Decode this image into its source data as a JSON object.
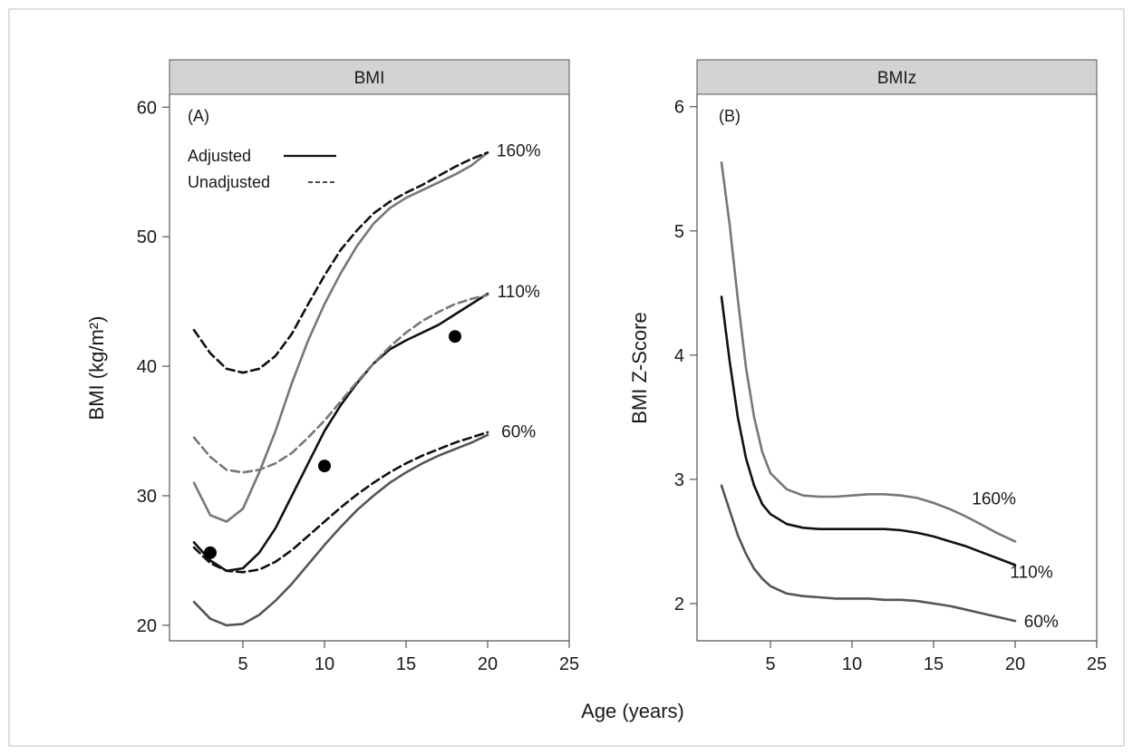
{
  "figure": {
    "xlabel": "Age (years)",
    "colors": {
      "dark": "#111111",
      "gray": "#777777",
      "mid": "#555555",
      "strip_fill": "#d3d3d3",
      "frame": "#bdbdbd"
    }
  },
  "chart_data": [
    {
      "type": "line",
      "strip_title": "BMI",
      "panel_tag": "(A)",
      "xlabel": "Age (years)",
      "ylabel": "BMI (kg/m²)",
      "xlim": [
        0.5,
        25
      ],
      "ylim": [
        18.8,
        61
      ],
      "x_ticks": [
        5,
        10,
        15,
        20,
        25
      ],
      "y_ticks": [
        20,
        30,
        40,
        50,
        60
      ],
      "legend": [
        {
          "label": "Adjusted",
          "style": "solid"
        },
        {
          "label": "Unadjusted",
          "style": "dashed"
        }
      ],
      "series": [
        {
          "name": "160%",
          "label": "160%",
          "adjustment": "Adjusted",
          "style": "solid",
          "color": "#777777",
          "label_at": [
            21.9,
            56.7
          ],
          "x": [
            2,
            3,
            4,
            5,
            6,
            7,
            8,
            9,
            10,
            11,
            12,
            13,
            14,
            15,
            16,
            17,
            18,
            19,
            20
          ],
          "y": [
            31.0,
            28.5,
            28.0,
            29.0,
            31.8,
            35.0,
            38.7,
            42.0,
            44.8,
            47.2,
            49.3,
            51.0,
            52.2,
            53.0,
            53.6,
            54.2,
            54.8,
            55.5,
            56.5
          ]
        },
        {
          "name": "160% unadjusted",
          "adjustment": "Unadjusted",
          "style": "dashed",
          "color": "#111111",
          "x": [
            2,
            3,
            4,
            5,
            6,
            7,
            8,
            9,
            10,
            11,
            12,
            13,
            14,
            15,
            16,
            17,
            18,
            19,
            20
          ],
          "y": [
            42.8,
            41.0,
            39.8,
            39.5,
            39.8,
            40.8,
            42.5,
            44.8,
            47.0,
            49.0,
            50.5,
            51.8,
            52.7,
            53.4,
            54.0,
            54.7,
            55.4,
            56.0,
            56.5
          ]
        },
        {
          "name": "110%",
          "label": "110%",
          "adjustment": "Adjusted",
          "style": "solid",
          "color": "#111111",
          "label_at": [
            21.9,
            45.8
          ],
          "x": [
            2,
            3,
            4,
            5,
            6,
            7,
            8,
            9,
            10,
            11,
            12,
            13,
            14,
            15,
            16,
            17,
            18,
            19,
            20
          ],
          "y": [
            26.4,
            25.0,
            24.2,
            24.4,
            25.6,
            27.5,
            30.0,
            32.5,
            35.0,
            37.0,
            38.7,
            40.2,
            41.3,
            42.0,
            42.6,
            43.2,
            44.0,
            44.8,
            45.6
          ]
        },
        {
          "name": "110% unadjusted",
          "adjustment": "Unadjusted",
          "style": "dashed",
          "color": "#777777",
          "x": [
            2,
            3,
            4,
            5,
            6,
            7,
            8,
            9,
            10,
            11,
            12,
            13,
            14,
            15,
            16,
            17,
            18,
            19,
            20
          ],
          "y": [
            34.5,
            33.0,
            32.0,
            31.8,
            32.0,
            32.5,
            33.3,
            34.5,
            35.8,
            37.3,
            38.8,
            40.2,
            41.5,
            42.6,
            43.5,
            44.2,
            44.8,
            45.2,
            45.5
          ]
        },
        {
          "name": "60%",
          "label": "60%",
          "adjustment": "Adjusted",
          "style": "solid",
          "color": "#555555",
          "label_at": [
            21.9,
            35.0
          ],
          "x": [
            2,
            3,
            4,
            5,
            6,
            7,
            8,
            9,
            10,
            11,
            12,
            13,
            14,
            15,
            16,
            17,
            18,
            19,
            20
          ],
          "y": [
            21.8,
            20.5,
            20.0,
            20.1,
            20.8,
            21.9,
            23.2,
            24.7,
            26.2,
            27.6,
            28.9,
            30.0,
            31.0,
            31.8,
            32.5,
            33.1,
            33.6,
            34.1,
            34.7
          ]
        },
        {
          "name": "60% unadjusted",
          "adjustment": "Unadjusted",
          "style": "dashed",
          "color": "#111111",
          "x": [
            2,
            3,
            4,
            5,
            6,
            7,
            8,
            9,
            10,
            11,
            12,
            13,
            14,
            15,
            16,
            17,
            18,
            19,
            20
          ],
          "y": [
            26.0,
            24.8,
            24.2,
            24.1,
            24.3,
            24.9,
            25.8,
            26.9,
            28.0,
            29.1,
            30.1,
            31.0,
            31.8,
            32.5,
            33.1,
            33.6,
            34.1,
            34.5,
            34.9
          ]
        }
      ],
      "points": {
        "x": [
          3,
          10,
          18
        ],
        "y": [
          25.6,
          32.3,
          42.3
        ]
      }
    },
    {
      "type": "line",
      "strip_title": "BMIz",
      "panel_tag": "(B)",
      "xlabel": "Age (years)",
      "ylabel": "BMI Z-Score",
      "xlim": [
        0.5,
        25
      ],
      "ylim": [
        1.7,
        6.1
      ],
      "x_ticks": [
        5,
        10,
        15,
        20,
        25
      ],
      "y_ticks": [
        2,
        3,
        4,
        5,
        6
      ],
      "series": [
        {
          "name": "160%",
          "label": "160%",
          "style": "solid",
          "color": "#777777",
          "label_at": [
            18.7,
            2.85
          ],
          "x": [
            2,
            2.5,
            3,
            3.5,
            4,
            4.5,
            5,
            6,
            7,
            8,
            9,
            10,
            11,
            12,
            13,
            14,
            15,
            16,
            17,
            18,
            19,
            20
          ],
          "y": [
            5.55,
            5.05,
            4.45,
            3.9,
            3.5,
            3.22,
            3.05,
            2.92,
            2.87,
            2.86,
            2.86,
            2.87,
            2.88,
            2.88,
            2.87,
            2.85,
            2.81,
            2.76,
            2.7,
            2.63,
            2.56,
            2.5
          ]
        },
        {
          "name": "110%",
          "label": "110%",
          "style": "solid",
          "color": "#111111",
          "label_at": [
            21.0,
            2.26
          ],
          "x": [
            2,
            2.5,
            3,
            3.5,
            4,
            4.5,
            5,
            6,
            7,
            8,
            9,
            10,
            11,
            12,
            13,
            14,
            15,
            16,
            17,
            18,
            19,
            20
          ],
          "y": [
            4.47,
            3.95,
            3.5,
            3.17,
            2.95,
            2.8,
            2.72,
            2.64,
            2.61,
            2.6,
            2.6,
            2.6,
            2.6,
            2.6,
            2.59,
            2.57,
            2.54,
            2.5,
            2.46,
            2.41,
            2.36,
            2.31
          ]
        },
        {
          "name": "60%",
          "label": "60%",
          "style": "solid",
          "color": "#555555",
          "label_at": [
            21.6,
            1.86
          ],
          "x": [
            2,
            2.5,
            3,
            3.5,
            4,
            4.5,
            5,
            6,
            7,
            8,
            9,
            10,
            11,
            12,
            13,
            14,
            15,
            16,
            17,
            18,
            19,
            20
          ],
          "y": [
            2.95,
            2.75,
            2.55,
            2.4,
            2.28,
            2.2,
            2.14,
            2.08,
            2.06,
            2.05,
            2.04,
            2.04,
            2.04,
            2.03,
            2.03,
            2.02,
            2.0,
            1.98,
            1.95,
            1.92,
            1.89,
            1.86
          ]
        }
      ]
    }
  ]
}
